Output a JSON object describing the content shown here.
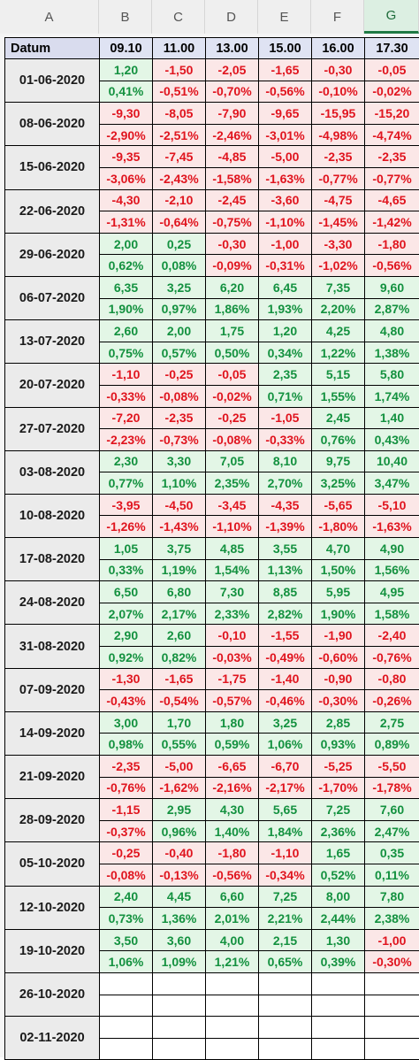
{
  "column_letters": [
    "A",
    "B",
    "C",
    "D",
    "E",
    "F",
    "G"
  ],
  "header": {
    "datum_label": "Datum",
    "times": [
      "09.10",
      "11.00",
      "13.00",
      "15.00",
      "16.00",
      "17.30"
    ]
  },
  "rows": [
    {
      "date": "01-06-2020",
      "abs": [
        "1,20",
        "-1,50",
        "-2,05",
        "-1,65",
        "-0,30",
        "-0,05"
      ],
      "pct": [
        "0,41%",
        "-0,51%",
        "-0,70%",
        "-0,56%",
        "-0,10%",
        "-0,02%"
      ]
    },
    {
      "date": "08-06-2020",
      "abs": [
        "-9,30",
        "-8,05",
        "-7,90",
        "-9,65",
        "-15,95",
        "-15,20"
      ],
      "pct": [
        "-2,90%",
        "-2,51%",
        "-2,46%",
        "-3,01%",
        "-4,98%",
        "-4,74%"
      ]
    },
    {
      "date": "15-06-2020",
      "abs": [
        "-9,35",
        "-7,45",
        "-4,85",
        "-5,00",
        "-2,35",
        "-2,35"
      ],
      "pct": [
        "-3,06%",
        "-2,43%",
        "-1,58%",
        "-1,63%",
        "-0,77%",
        "-0,77%"
      ]
    },
    {
      "date": "22-06-2020",
      "abs": [
        "-4,30",
        "-2,10",
        "-2,45",
        "-3,60",
        "-4,75",
        "-4,65"
      ],
      "pct": [
        "-1,31%",
        "-0,64%",
        "-0,75%",
        "-1,10%",
        "-1,45%",
        "-1,42%"
      ]
    },
    {
      "date": "29-06-2020",
      "abs": [
        "2,00",
        "0,25",
        "-0,30",
        "-1,00",
        "-3,30",
        "-1,80"
      ],
      "pct": [
        "0,62%",
        "0,08%",
        "-0,09%",
        "-0,31%",
        "-1,02%",
        "-0,56%"
      ]
    },
    {
      "date": "06-07-2020",
      "abs": [
        "6,35",
        "3,25",
        "6,20",
        "6,45",
        "7,35",
        "9,60"
      ],
      "pct": [
        "1,90%",
        "0,97%",
        "1,86%",
        "1,93%",
        "2,20%",
        "2,87%"
      ]
    },
    {
      "date": "13-07-2020",
      "abs": [
        "2,60",
        "2,00",
        "1,75",
        "1,20",
        "4,25",
        "4,80"
      ],
      "pct": [
        "0,75%",
        "0,57%",
        "0,50%",
        "0,34%",
        "1,22%",
        "1,38%"
      ]
    },
    {
      "date": "20-07-2020",
      "abs": [
        "-1,10",
        "-0,25",
        "-0,05",
        "2,35",
        "5,15",
        "5,80"
      ],
      "pct": [
        "-0,33%",
        "-0,08%",
        "-0,02%",
        "0,71%",
        "1,55%",
        "1,74%"
      ]
    },
    {
      "date": "27-07-2020",
      "abs": [
        "-7,20",
        "-2,35",
        "-0,25",
        "-1,05",
        "2,45",
        "1,40"
      ],
      "pct": [
        "-2,23%",
        "-0,73%",
        "-0,08%",
        "-0,33%",
        "0,76%",
        "0,43%"
      ]
    },
    {
      "date": "03-08-2020",
      "abs": [
        "2,30",
        "3,30",
        "7,05",
        "8,10",
        "9,75",
        "10,40"
      ],
      "pct": [
        "0,77%",
        "1,10%",
        "2,35%",
        "2,70%",
        "3,25%",
        "3,47%"
      ]
    },
    {
      "date": "10-08-2020",
      "abs": [
        "-3,95",
        "-4,50",
        "-3,45",
        "-4,35",
        "-5,65",
        "-5,10"
      ],
      "pct": [
        "-1,26%",
        "-1,43%",
        "-1,10%",
        "-1,39%",
        "-1,80%",
        "-1,63%"
      ]
    },
    {
      "date": "17-08-2020",
      "abs": [
        "1,05",
        "3,75",
        "4,85",
        "3,55",
        "4,70",
        "4,90"
      ],
      "pct": [
        "0,33%",
        "1,19%",
        "1,54%",
        "1,13%",
        "1,50%",
        "1,56%"
      ]
    },
    {
      "date": "24-08-2020",
      "abs": [
        "6,50",
        "6,80",
        "7,30",
        "8,85",
        "5,95",
        "4,95"
      ],
      "pct": [
        "2,07%",
        "2,17%",
        "2,33%",
        "2,82%",
        "1,90%",
        "1,58%"
      ]
    },
    {
      "date": "31-08-2020",
      "abs": [
        "2,90",
        "2,60",
        "-0,10",
        "-1,55",
        "-1,90",
        "-2,40"
      ],
      "pct": [
        "0,92%",
        "0,82%",
        "-0,03%",
        "-0,49%",
        "-0,60%",
        "-0,76%"
      ]
    },
    {
      "date": "07-09-2020",
      "abs": [
        "-1,30",
        "-1,65",
        "-1,75",
        "-1,40",
        "-0,90",
        "-0,80"
      ],
      "pct": [
        "-0,43%",
        "-0,54%",
        "-0,57%",
        "-0,46%",
        "-0,30%",
        "-0,26%"
      ]
    },
    {
      "date": "14-09-2020",
      "abs": [
        "3,00",
        "1,70",
        "1,80",
        "3,25",
        "2,85",
        "2,75"
      ],
      "pct": [
        "0,98%",
        "0,55%",
        "0,59%",
        "1,06%",
        "0,93%",
        "0,89%"
      ]
    },
    {
      "date": "21-09-2020",
      "abs": [
        "-2,35",
        "-5,00",
        "-6,65",
        "-6,70",
        "-5,25",
        "-5,50"
      ],
      "pct": [
        "-0,76%",
        "-1,62%",
        "-2,16%",
        "-2,17%",
        "-1,70%",
        "-1,78%"
      ]
    },
    {
      "date": "28-09-2020",
      "abs": [
        "-1,15",
        "2,95",
        "4,30",
        "5,65",
        "7,25",
        "7,60"
      ],
      "pct": [
        "-0,37%",
        "0,96%",
        "1,40%",
        "1,84%",
        "2,36%",
        "2,47%"
      ]
    },
    {
      "date": "05-10-2020",
      "abs": [
        "-0,25",
        "-0,40",
        "-1,80",
        "-1,10",
        "1,65",
        "0,35"
      ],
      "pct": [
        "-0,08%",
        "-0,13%",
        "-0,56%",
        "-0,34%",
        "0,52%",
        "0,11%"
      ]
    },
    {
      "date": "12-10-2020",
      "abs": [
        "2,40",
        "4,45",
        "6,60",
        "7,25",
        "8,00",
        "7,80"
      ],
      "pct": [
        "0,73%",
        "1,36%",
        "2,01%",
        "2,21%",
        "2,44%",
        "2,38%"
      ]
    },
    {
      "date": "19-10-2020",
      "abs": [
        "3,50",
        "3,60",
        "4,00",
        "2,15",
        "1,30",
        "-1,00"
      ],
      "pct": [
        "1,06%",
        "1,09%",
        "1,21%",
        "0,65%",
        "0,39%",
        "-0,30%"
      ]
    },
    {
      "date": "26-10-2020",
      "abs": [
        "",
        "",
        "",
        "",
        "",
        ""
      ],
      "pct": [
        "",
        "",
        "",
        "",
        "",
        ""
      ]
    },
    {
      "date": "02-11-2020",
      "abs": [
        "",
        "",
        "",
        "",
        "",
        ""
      ],
      "pct": [
        "",
        "",
        "",
        "",
        "",
        ""
      ]
    }
  ],
  "colors": {
    "positive_text": "#13913f",
    "positive_bg": "#e3f6e6",
    "negative_text": "#e0141e",
    "negative_bg": "#fbe7e7",
    "header_bg": "#dfe3f3",
    "date_bg": "#ebebeb",
    "active_column": "#1f7a44"
  }
}
